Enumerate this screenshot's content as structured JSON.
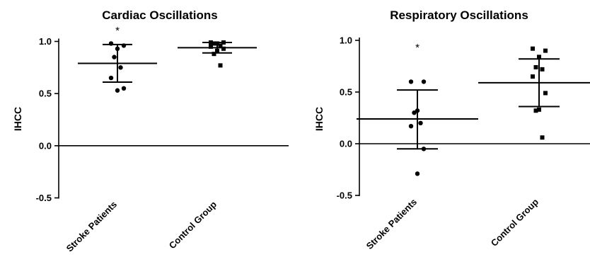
{
  "chart_data": [
    {
      "type": "scatter",
      "title": "Cardiac Oscillations",
      "ylabel": "IHCC",
      "ylim": [
        -0.5,
        1.0
      ],
      "yticks": [
        "1.0",
        "0.5",
        "0.0",
        "-0.5"
      ],
      "categories": [
        "Stroke Patients",
        "Control Group"
      ],
      "series": [
        {
          "category": "Stroke Patients",
          "marker": "circle",
          "values": [
            0.98,
            0.96,
            0.93,
            0.85,
            0.75,
            0.65,
            0.55,
            0.53
          ],
          "mean": 0.79,
          "err_low": 0.61,
          "err_high": 0.97,
          "annotation": "*"
        },
        {
          "category": "Control Group",
          "marker": "square",
          "values": [
            0.99,
            0.99,
            0.98,
            0.98,
            0.96,
            0.95,
            0.93,
            0.91,
            0.88,
            0.77
          ],
          "mean": 0.94,
          "err_low": 0.89,
          "err_high": 0.99,
          "annotation": ""
        }
      ]
    },
    {
      "type": "scatter",
      "title": "Respiratory Oscillations",
      "ylabel": "IHCC",
      "ylim": [
        -0.5,
        1.0
      ],
      "yticks": [
        "1.0",
        "0.5",
        "0.0",
        "-0.5"
      ],
      "categories": [
        "Stroke Patients",
        "Control Group"
      ],
      "series": [
        {
          "category": "Stroke Patients",
          "marker": "circle",
          "values": [
            0.6,
            0.6,
            0.32,
            0.3,
            0.2,
            0.17,
            -0.05,
            -0.29
          ],
          "mean": 0.24,
          "err_low": -0.05,
          "err_high": 0.52,
          "annotation": "*"
        },
        {
          "category": "Control Group",
          "marker": "square",
          "values": [
            0.92,
            0.9,
            0.84,
            0.74,
            0.72,
            0.65,
            0.49,
            0.33,
            0.32,
            0.06
          ],
          "mean": 0.59,
          "err_low": 0.36,
          "err_high": 0.82,
          "annotation": ""
        }
      ]
    }
  ]
}
